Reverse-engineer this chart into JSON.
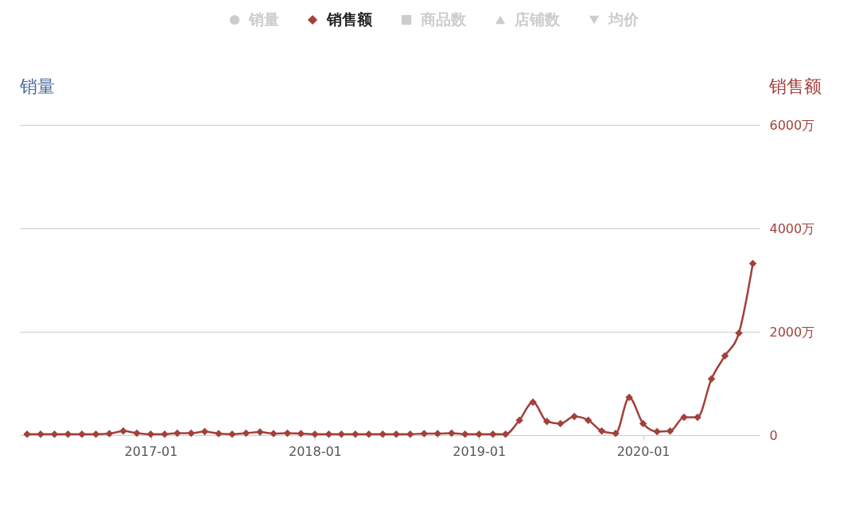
{
  "chart_data": {
    "type": "line",
    "ylabel": "销量",
    "y2label": "销售额",
    "x": [
      "2016-04",
      "2016-05",
      "2016-06",
      "2016-07",
      "2016-08",
      "2016-09",
      "2016-10",
      "2016-11",
      "2016-12",
      "2017-01",
      "2017-02",
      "2017-03",
      "2017-04",
      "2017-05",
      "2017-06",
      "2017-07",
      "2017-08",
      "2017-09",
      "2017-10",
      "2017-11",
      "2017-12",
      "2018-01",
      "2018-02",
      "2018-03",
      "2018-04",
      "2018-05",
      "2018-06",
      "2018-07",
      "2018-08",
      "2018-09",
      "2018-10",
      "2018-11",
      "2018-12",
      "2019-01",
      "2019-02",
      "2019-03",
      "2019-04",
      "2019-05",
      "2019-06",
      "2019-07",
      "2019-08",
      "2019-09",
      "2019-10",
      "2019-11",
      "2019-12",
      "2020-01",
      "2020-02",
      "2020-03",
      "2020-04",
      "2020-05",
      "2020-06",
      "2020-07",
      "2020-08",
      "2020-09"
    ],
    "series": [
      {
        "name": "销量",
        "color": "#cccccc",
        "marker": "circle",
        "values": [
          null,
          null,
          null,
          null,
          null,
          null,
          null,
          null,
          null,
          null,
          null,
          null,
          null,
          null,
          null,
          null,
          null,
          null,
          null,
          null,
          null,
          null,
          null,
          null,
          null,
          null,
          null,
          null,
          null,
          null,
          null,
          null,
          null,
          null,
          null,
          null,
          null,
          null,
          null,
          null,
          null,
          null,
          null,
          null,
          null,
          null,
          null,
          null,
          null,
          null,
          null,
          null,
          null,
          null
        ]
      },
      {
        "name": "销售额",
        "color": "#a2403b",
        "marker": "diamond",
        "axis": "y2",
        "values": [
          20,
          20,
          20,
          20,
          20,
          20,
          30,
          80,
          40,
          20,
          20,
          40,
          40,
          70,
          30,
          20,
          40,
          60,
          30,
          40,
          30,
          20,
          20,
          20,
          20,
          20,
          20,
          20,
          20,
          30,
          30,
          40,
          20,
          20,
          20,
          20,
          290,
          640,
          265,
          225,
          360,
          290,
          80,
          35,
          730,
          225,
          70,
          80,
          345,
          345,
          1090,
          1535,
          1975,
          3320
        ]
      },
      {
        "name": "商品数",
        "color": "#cccccc",
        "marker": "square",
        "values": [
          null,
          null,
          null,
          null,
          null,
          null,
          null,
          null,
          null,
          null,
          null,
          null,
          null,
          null,
          null,
          null,
          null,
          null,
          null,
          null,
          null,
          null,
          null,
          null,
          null,
          null,
          null,
          null,
          null,
          null,
          null,
          null,
          null,
          null,
          null,
          null,
          null,
          null,
          null,
          null,
          null,
          null,
          null,
          null,
          null,
          null,
          null,
          null,
          null,
          null,
          null,
          null,
          null,
          null
        ]
      },
      {
        "name": "店铺数",
        "color": "#cccccc",
        "marker": "triangle",
        "values": [
          null,
          null,
          null,
          null,
          null,
          null,
          null,
          null,
          null,
          null,
          null,
          null,
          null,
          null,
          null,
          null,
          null,
          null,
          null,
          null,
          null,
          null,
          null,
          null,
          null,
          null,
          null,
          null,
          null,
          null,
          null,
          null,
          null,
          null,
          null,
          null,
          null,
          null,
          null,
          null,
          null,
          null,
          null,
          null,
          null,
          null,
          null,
          null,
          null,
          null,
          null,
          null,
          null,
          null
        ]
      },
      {
        "name": "均价",
        "color": "#cccccc",
        "marker": "triangle-down",
        "values": [
          null,
          null,
          null,
          null,
          null,
          null,
          null,
          null,
          null,
          null,
          null,
          null,
          null,
          null,
          null,
          null,
          null,
          null,
          null,
          null,
          null,
          null,
          null,
          null,
          null,
          null,
          null,
          null,
          null,
          null,
          null,
          null,
          null,
          null,
          null,
          null,
          null,
          null,
          null,
          null,
          null,
          null,
          null,
          null,
          null,
          null,
          null,
          null,
          null,
          null,
          null,
          null,
          null,
          null
        ]
      }
    ],
    "xlim": [
      "2016-03-16",
      "2020-09-16"
    ],
    "xticks": [
      {
        "value": "2017-01",
        "label": "2017-01"
      },
      {
        "value": "2018-01",
        "label": "2018-01"
      },
      {
        "value": "2019-01",
        "label": "2019-01"
      },
      {
        "value": "2020-01",
        "label": "2020-01"
      }
    ],
    "y2lim": [
      0,
      6000
    ],
    "y2ticks": [
      0,
      {
        "value": 2000,
        "label": "2000万"
      },
      {
        "value": 4000,
        "label": "4000万"
      },
      {
        "value": 6000,
        "label": "6000万"
      }
    ],
    "grid": "y",
    "legend": "top",
    "line_style": "solid"
  }
}
